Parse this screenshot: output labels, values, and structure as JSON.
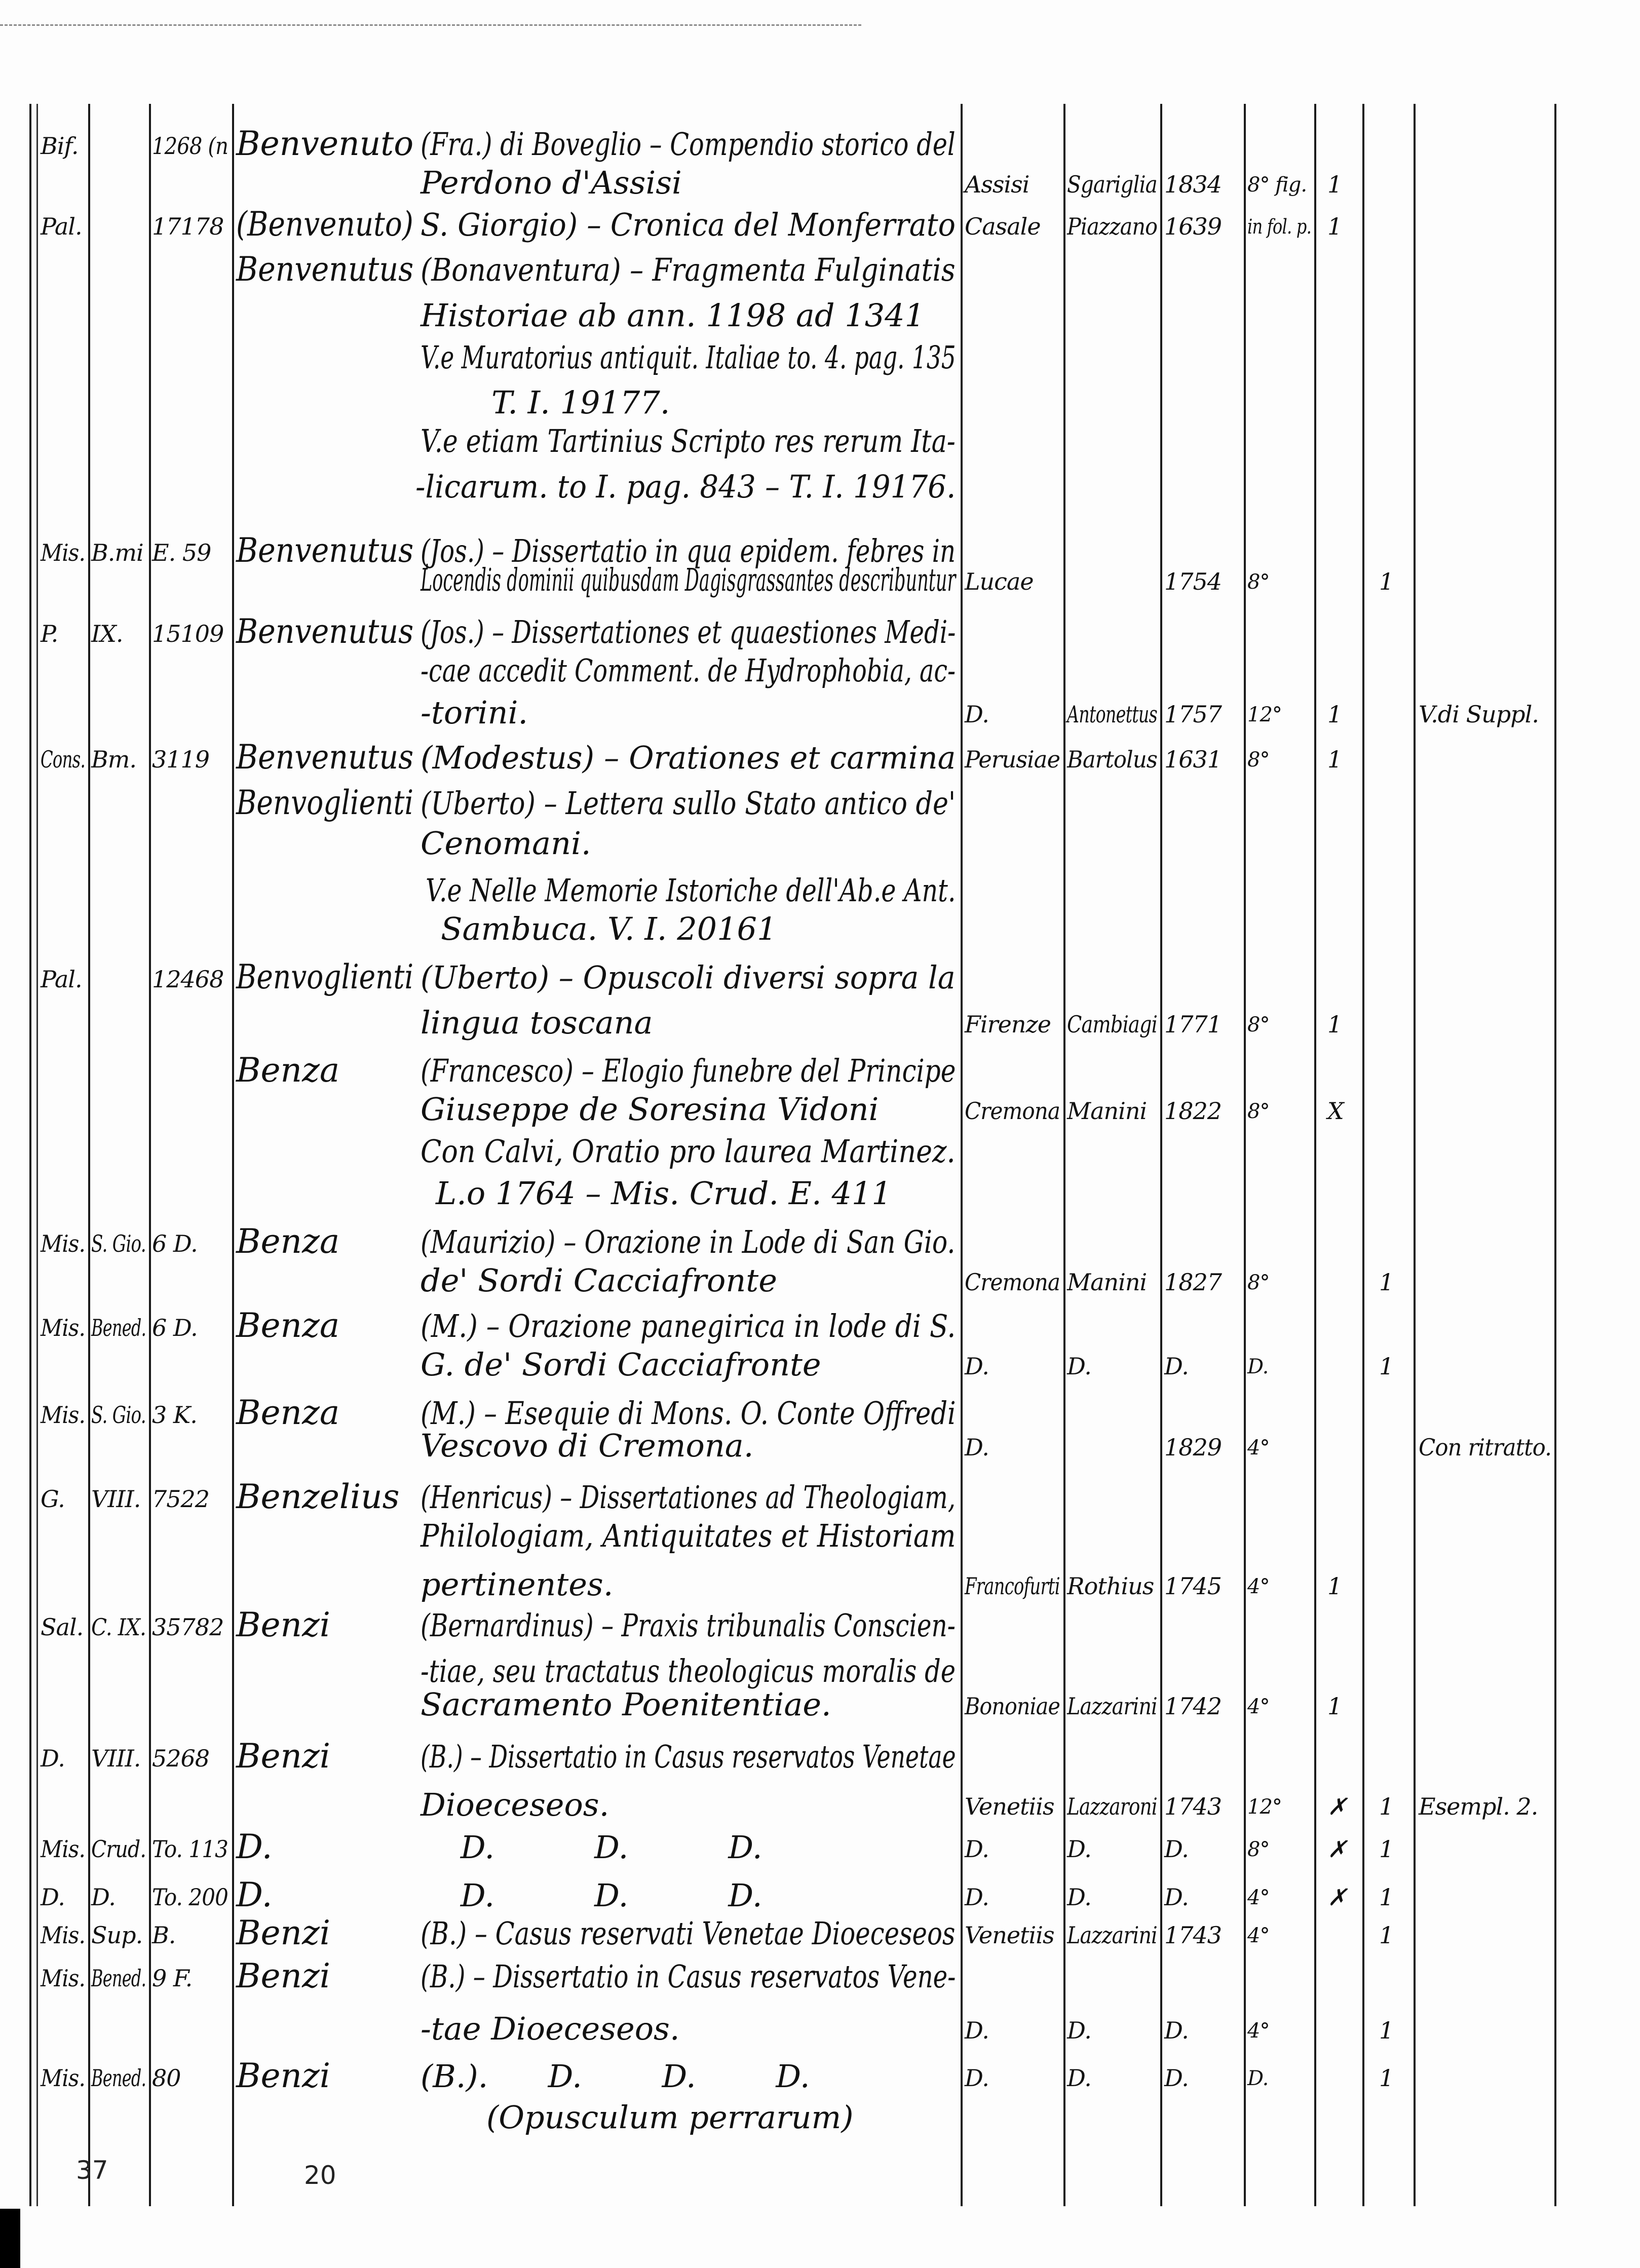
{
  "rows": [
    {
      "c1": "Bif.",
      "c3": "1268 (n",
      "author": "Benvenuto",
      "text": "(Fra.) di Boveglio – Compendio storico del"
    },
    {
      "text": "Perdono d'Assisi",
      "place": "Assisi",
      "printer": "Sgariglia",
      "year": "1834",
      "format": "8° fig.",
      "col9": "1"
    },
    {
      "c1": "Pal.",
      "c3": "17178",
      "author": "(Benvenuto)",
      "text": "S. Giorgio) – Cronica del Monferrato",
      "place": "Casale",
      "printer": "Piazzano",
      "year": "1639",
      "format": "in fol. p.",
      "col9": "1"
    },
    {
      "author": "Benvenutus",
      "text": "(Bonaventura) – Fragmenta Fulginatis"
    },
    {
      "text": "Historiae ab ann. 1198 ad 1341"
    },
    {
      "text": "V.e Muratorius antiquit. Italiae to. 4. pag. 135"
    },
    {
      "text": "T. I. 19177."
    },
    {
      "text": "V.e etiam Tartinius Scripto res rerum Ita-"
    },
    {
      "text": "-licarum. to I. pag. 843 – T. I. 19176."
    },
    {
      "c1": "Mis.",
      "c2": "B.mi",
      "c3": "E. 59",
      "author": "Benvenutus",
      "text": "(Jos.) – Dissertatio in qua epidem. febres in"
    },
    {
      "text": "Locendis dominii quibusdam Dagisgrassantes describuntur",
      "place": "Lucae",
      "year": "1754",
      "format": "8°",
      "col10": "1"
    },
    {
      "c1": "P.",
      "c2": "IX.",
      "c3": "15109",
      "author": "Benvenutus",
      "text": "(Jos.) – Dissertationes et quaestiones Medi-"
    },
    {
      "text": "-cae accedit Comment. de Hydrophobia, ac-"
    },
    {
      "text": "-torini.",
      "place": "D.",
      "printer": "Antonettus",
      "year": "1757",
      "format": "12°",
      "col9": "1",
      "note": "V.di Suppl."
    },
    {
      "c1": "Cons.",
      "c2": "Bm.",
      "c3": "3119",
      "author": "Benvenutus",
      "text": "(Modestus) – Orationes et carmina",
      "place": "Perusiae",
      "printer": "Bartolus",
      "year": "1631",
      "format": "8°",
      "col9": "1"
    },
    {
      "author": "Benvoglienti",
      "text": "(Uberto) – Lettera sullo Stato antico de'"
    },
    {
      "text": "Cenomani."
    },
    {
      "text": "V.e Nelle Memorie Istoriche dell'Ab.e Ant."
    },
    {
      "text": "Sambuca. V. I. 20161"
    },
    {
      "c1": "Pal.",
      "c3": "12468",
      "author": "Benvoglienti",
      "text": "(Uberto) – Opuscoli diversi sopra la"
    },
    {
      "text": "lingua toscana",
      "place": "Firenze",
      "printer": "Cambiagi",
      "year": "1771",
      "format": "8°",
      "col9": "1"
    },
    {
      "author": "Benza",
      "text": "(Francesco) – Elogio funebre del Principe"
    },
    {
      "text": "Giuseppe de Soresina Vidoni",
      "place": "Cremona",
      "printer": "Manini",
      "year": "1822",
      "format": "8°",
      "col9": "X"
    },
    {
      "text": "Con Calvi, Oratio pro laurea Martinez."
    },
    {
      "text": "L.o 1764 – Mis. Crud. E. 411"
    },
    {
      "c1": "Mis.",
      "c2": "S. Gio.",
      "c3": "6 D.",
      "author": "Benza",
      "text": "(Maurizio) – Orazione in Lode di San Gio."
    },
    {
      "text": "de' Sordi Cacciafronte",
      "place": "Cremona",
      "printer": "Manini",
      "year": "1827",
      "format": "8°",
      "col10": "1"
    },
    {
      "c1": "Mis.",
      "c2": "Bened.",
      "c3": "6 D.",
      "author": "Benza",
      "text": "(M.) – Orazione panegirica in lode di S."
    },
    {
      "text": "G. de' Sordi Cacciafronte",
      "place": "D.",
      "printer": "D.",
      "year": "D.",
      "format": "D.",
      "col10": "1"
    },
    {
      "c1": "Mis.",
      "c2": "S. Gio.",
      "c3": "3 K.",
      "author": "Benza",
      "text": "(M.) – Esequie di Mons. O. Conte Offredi"
    },
    {
      "text": "Vescovo di Cremona.",
      "place": "D.",
      "year": "1829",
      "format": "4°",
      "note": "Con ritratto."
    },
    {
      "c1": "G.",
      "c2": "VIII.",
      "c3": "7522",
      "author": "Benzelius",
      "text": "(Henricus) – Dissertationes ad Theologiam,"
    },
    {
      "text": "Philologiam, Antiquitates et Historiam"
    },
    {
      "text": "pertinentes.",
      "place": "Francofurti",
      "printer": "Rothius",
      "year": "1745",
      "format": "4°",
      "col9": "1"
    },
    {
      "c1": "Sal.",
      "c2": "C. IX.",
      "c3": "35782",
      "author": "Benzi",
      "text": "(Bernardinus) – Praxis tribunalis Conscien-"
    },
    {
      "text": "-tiae, seu tractatus theologicus moralis de"
    },
    {
      "text": "Sacramento Poenitentiae.",
      "place": "Bononiae",
      "printer": "Lazzarini",
      "year": "1742",
      "format": "4°",
      "col9": "1"
    },
    {
      "c1": "D.",
      "c2": "VIII.",
      "c3": "5268",
      "author": "Benzi",
      "text": "(B.) – Dissertatio in Casus reservatos Venetae"
    },
    {
      "text": "Dioeceseos.",
      "place": "Venetiis",
      "printer": "Lazzaroni",
      "year": "1743",
      "format": "12°",
      "col9": "✗",
      "col10": "1",
      "note": "Esempl. 2."
    },
    {
      "c1": "Mis.",
      "c2": "Crud.",
      "c3": "To. 113",
      "author": "D.",
      "text": "    D.          D.          D.",
      "place": "D.",
      "printer": "D.",
      "year": "D.",
      "format": "8°",
      "col9": "✗",
      "col10": "1"
    },
    {
      "c1": "D.",
      "c2": "D.",
      "c3": "To. 200",
      "author": "D.",
      "text": "    D.          D.          D.",
      "place": "D.",
      "printer": "D.",
      "year": "D.",
      "format": "4°",
      "col9": "✗",
      "col10": "1"
    },
    {
      "c1": "Mis.",
      "c2": "Sup.",
      "c3": "B.",
      "author": "Benzi",
      "text": "(B.) – Casus reservati Venetae Dioeceseos",
      "place": "Venetiis",
      "printer": "Lazzarini",
      "year": "1743",
      "format": "4°",
      "col10": "1"
    },
    {
      "c1": "Mis.",
      "c2": "Bened.",
      "c3": "9 F.",
      "author": "Benzi",
      "text": "(B.) – Dissertatio in Casus reservatos Vene-"
    },
    {
      "text": "-tae Dioeceseos.",
      "place": "D.",
      "printer": "D.",
      "year": "D.",
      "format": "4°",
      "col10": "1"
    },
    {
      "c1": "Mis.",
      "c2": "Bened.",
      "c3": "80",
      "author": "Benzi",
      "text": "(B.).      D.        D.        D.",
      "place": "D.",
      "printer": "D.",
      "year": "D.",
      "format": "D.",
      "col10": "1"
    },
    {
      "text": "(Opusculum perrarum)"
    }
  ],
  "footer": {
    "left_number": "37",
    "center_number": "20"
  }
}
